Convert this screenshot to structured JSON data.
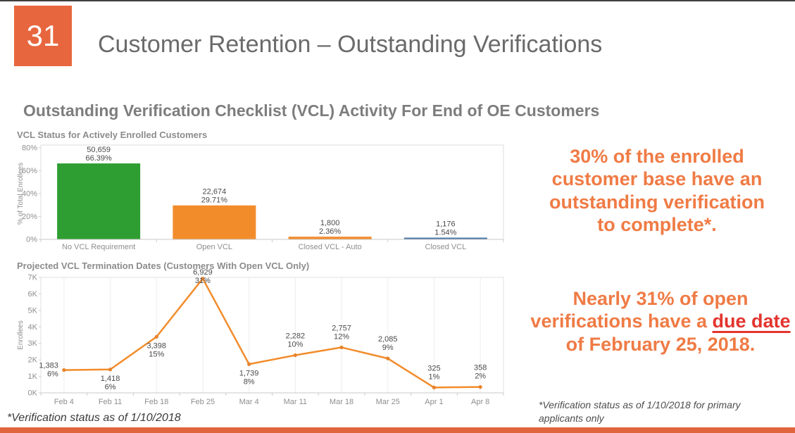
{
  "slide": {
    "number": "31",
    "title": "Customer Retention – Outstanding Verifications",
    "subtitle": "Outstanding Verification Checklist (VCL) Activity For End of OE Customers",
    "footnote_left": "*Verification status as of 1/10/2018",
    "footnote_right": "*Verification status as of 1/10/2018 for primary applicants only",
    "accent_color": "#E8663E"
  },
  "callouts": {
    "first": "30% of the enrolled customer base have an outstanding verification to complete*.",
    "second_prefix": "Nearly 31% of open verifications have a ",
    "second_highlight": "due date",
    "second_suffix": " of February 25, 2018.",
    "text_color": "#EF7B45",
    "highlight_color": "#E4342E"
  },
  "chart_data": [
    {
      "type": "bar",
      "title": "VCL Status for Actively Enrolled Customers",
      "xlabel": "",
      "ylabel": "% of Total Enrollees",
      "ylim": [
        0,
        80
      ],
      "yticks": [
        "0%",
        "20%",
        "40%",
        "60%",
        "80%"
      ],
      "categories": [
        "No VCL Requirement",
        "Open VCL",
        "Closed VCL - Auto",
        "Closed VCL"
      ],
      "values": [
        66.39,
        29.71,
        2.36,
        1.54
      ],
      "value_labels": [
        [
          "50,659",
          "66.39%"
        ],
        [
          "22,674",
          "29.71%"
        ],
        [
          "1,800",
          "2.36%"
        ],
        [
          "1,176",
          "1.54%"
        ]
      ],
      "bar_colors": [
        "#2F9E32",
        "#F28C2B",
        "#F28C2B",
        "#4E79A7"
      ],
      "grid": "off",
      "legend": "none"
    },
    {
      "type": "line",
      "title": "Projected VCL Termination Dates (Customers With Open VCL Only)",
      "xlabel": "",
      "ylabel": "Enrollees",
      "ylim": [
        0,
        7000
      ],
      "yticks": [
        "0K",
        "1K",
        "2K",
        "3K",
        "4K",
        "5K",
        "6K",
        "7K"
      ],
      "categories": [
        "Feb 4",
        "Feb 11",
        "Feb 18",
        "Feb 25",
        "Mar 4",
        "Mar 11",
        "Mar 18",
        "Mar 25",
        "Apr 1",
        "Apr 8"
      ],
      "values": [
        1383,
        1418,
        3398,
        6929,
        1739,
        2282,
        2757,
        2085,
        325,
        358
      ],
      "point_labels": [
        [
          "1,383",
          "6%"
        ],
        [
          "1,418",
          "6%"
        ],
        [
          "3,398",
          "15%"
        ],
        [
          "6,929",
          "31%"
        ],
        [
          "1,739",
          "8%"
        ],
        [
          "2,282",
          "10%"
        ],
        [
          "2,757",
          "12%"
        ],
        [
          "2,085",
          "9%"
        ],
        [
          "325",
          "1%"
        ],
        [
          "358",
          "2%"
        ]
      ],
      "label_positions": [
        "left",
        "below",
        "below",
        "above",
        "below",
        "above",
        "above",
        "above",
        "above",
        "above"
      ],
      "line_color": "#F28C2B",
      "marker_color": "#E8822B",
      "grid": "vertical",
      "legend": "none"
    }
  ]
}
